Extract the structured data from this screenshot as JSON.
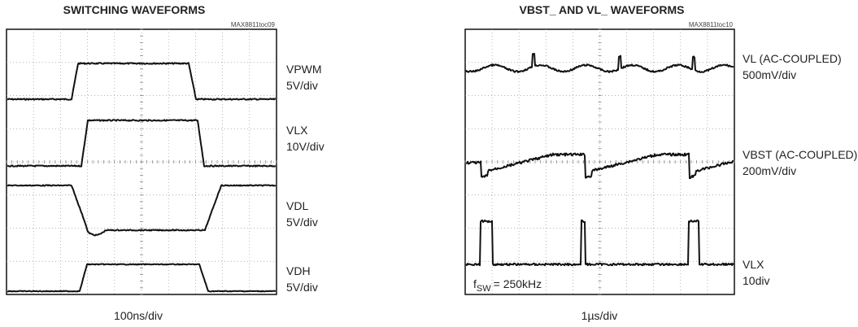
{
  "panels": [
    {
      "title": "SWITCHING WAVEFORMS",
      "code": "MAX8811toc09",
      "xlabel": "100ns/div",
      "traces": [
        {
          "name": "VPWM",
          "scale": "5V/div"
        },
        {
          "name": "VLX",
          "scale": "10V/div"
        },
        {
          "name": "VDL",
          "scale": "5V/div"
        },
        {
          "name": "VDH",
          "scale": "5V/div"
        }
      ]
    },
    {
      "title": "VBST_ AND VL_ WAVEFORMS",
      "code": "MAX8811toc10",
      "xlabel": "1µs/div",
      "traces": [
        {
          "name": "VL (AC-COUPLED)",
          "scale": "500mV/div"
        },
        {
          "name": "VBST (AC-COUPLED)",
          "scale": "200mV/div"
        },
        {
          "name": "VLX",
          "scale": "10div"
        }
      ],
      "annotation": {
        "symbol": "f",
        "subscript": "SW",
        "text": "= 250kHz"
      }
    }
  ]
}
